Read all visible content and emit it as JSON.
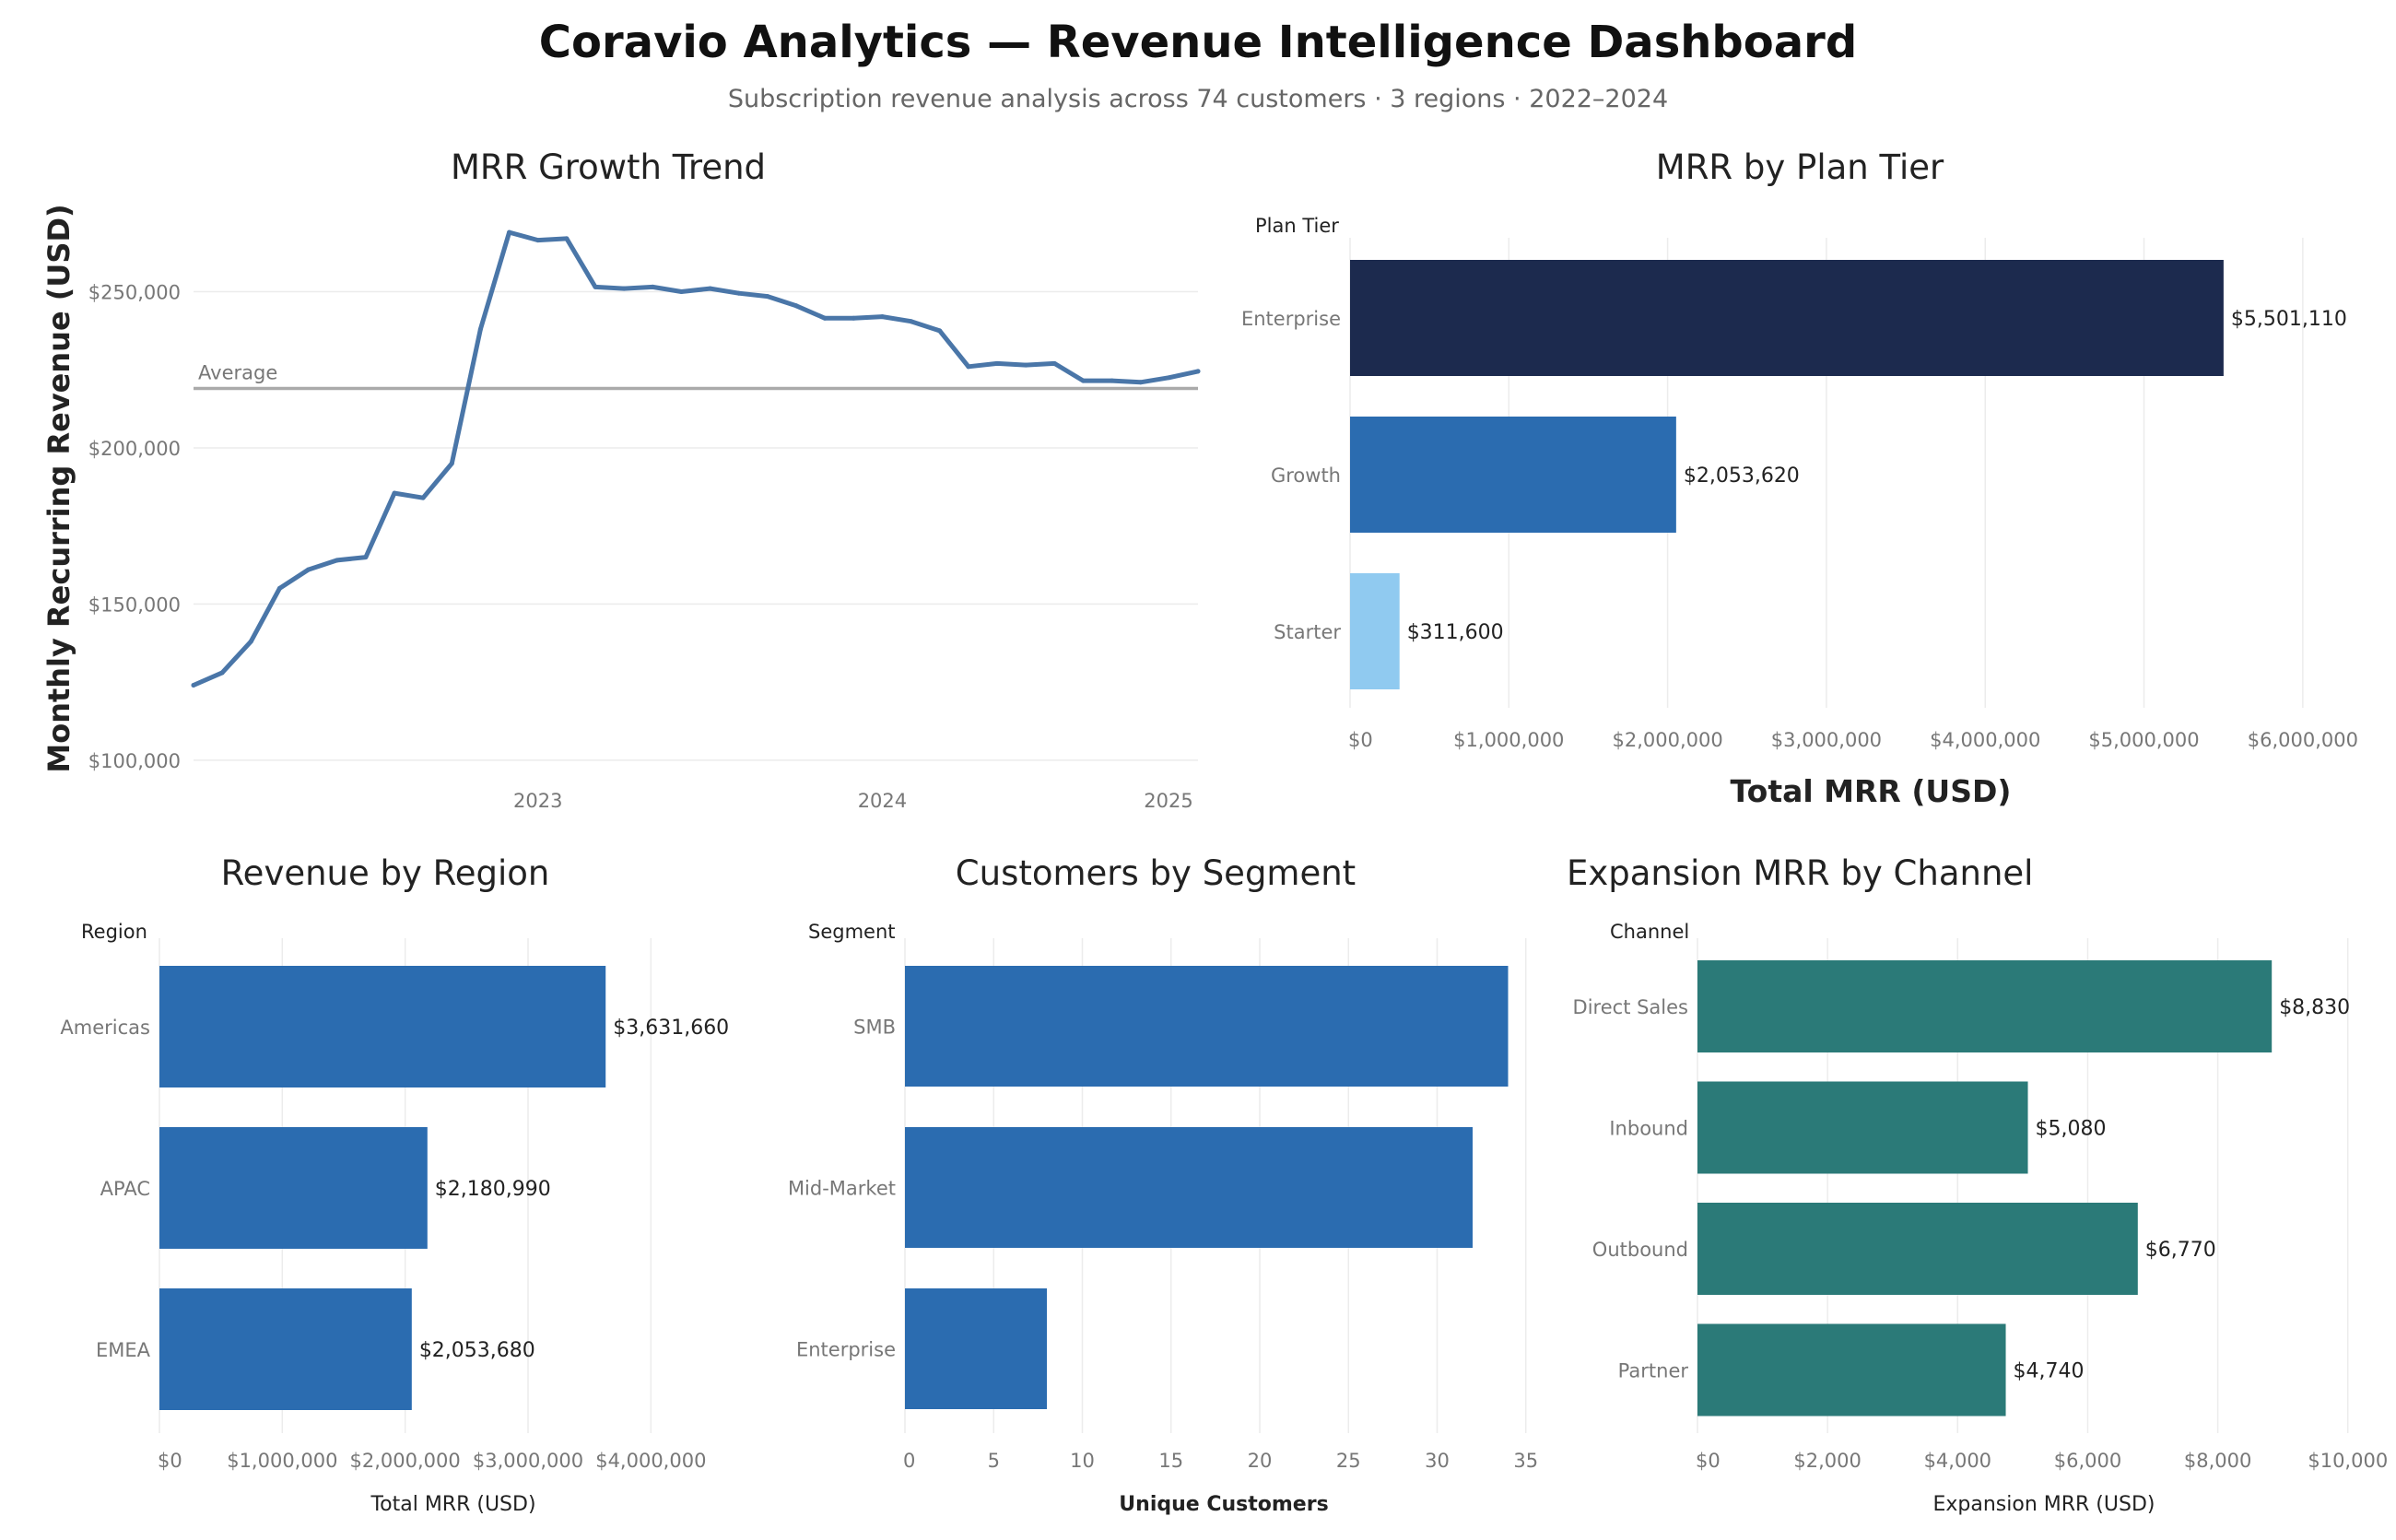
{
  "dashboard": {
    "title": "Coravio Analytics — Revenue Intelligence Dashboard",
    "subtitle": "Subscription revenue analysis across 74 customers · 3 regions · 2022–2024"
  },
  "colors": {
    "line": "#4a76a8",
    "navy": "#1c2a4e",
    "blue": "#2b6cb0",
    "light_blue": "#90caf0",
    "teal": "#2b7a78",
    "average_line": "#aaaaaa",
    "grid": "#ececec"
  },
  "chart_data": [
    {
      "type": "line",
      "title": "MRR Growth Trend",
      "ylabel": "Monthly Recurring Revenue (USD)",
      "xlabel": "",
      "x_ticks": [
        "2023",
        "2024",
        "2025"
      ],
      "y_ticks": [
        "$100,000",
        "$150,000",
        "$200,000",
        "$250,000"
      ],
      "ylim": [
        97000,
        277000
      ],
      "xlim": [
        "2022-01",
        "2024-12"
      ],
      "x": [
        "2022-01",
        "2022-02",
        "2022-03",
        "2022-04",
        "2022-05",
        "2022-06",
        "2022-07",
        "2022-08",
        "2022-09",
        "2022-10",
        "2022-11",
        "2022-12",
        "2023-01",
        "2023-02",
        "2023-03",
        "2023-04",
        "2023-05",
        "2023-06",
        "2023-07",
        "2023-08",
        "2023-09",
        "2023-10",
        "2023-11",
        "2023-12",
        "2024-01",
        "2024-02",
        "2024-03",
        "2024-04",
        "2024-05",
        "2024-06",
        "2024-07",
        "2024-08",
        "2024-09",
        "2024-10",
        "2024-11",
        "2024-12"
      ],
      "series": [
        {
          "values": [
            124000,
            128000,
            138000,
            155000,
            161000,
            164000,
            165000,
            185500,
            184000,
            195000,
            238000,
            269000,
            266500,
            267000,
            251500,
            251000,
            251500,
            250000,
            251000,
            249500,
            248500,
            245500,
            241500,
            241500,
            242000,
            240500,
            237500,
            226000,
            227000,
            226500,
            227000,
            221500,
            221500,
            221000,
            222500,
            224500
          ]
        }
      ],
      "average": 219000,
      "average_label": "Average",
      "grid": true
    },
    {
      "type": "bar",
      "orientation": "horizontal",
      "title": "MRR by Plan Tier",
      "axis_header": "Plan Tier",
      "categories": [
        "Enterprise",
        "Growth",
        "Starter"
      ],
      "values": [
        5501110,
        2053620,
        311600
      ],
      "value_labels": [
        "$5,501,110",
        "$2,053,620",
        "$311,600"
      ],
      "xlabel": "Total MRR (USD)",
      "xlim": [
        0,
        6500000
      ],
      "x_ticks": [
        0,
        1000000,
        2000000,
        3000000,
        4000000,
        5000000,
        6000000
      ],
      "x_tick_labels": [
        "$0",
        "$1,000,000",
        "$2,000,000",
        "$3,000,000",
        "$4,000,000",
        "$5,000,000",
        "$6,000,000"
      ],
      "colors": [
        "#1c2a4e",
        "#2b6cb0",
        "#90caf0"
      ],
      "grid": true
    },
    {
      "type": "bar",
      "orientation": "horizontal",
      "title": "Revenue by Region",
      "axis_header": "Region",
      "categories": [
        "Americas",
        "APAC",
        "EMEA"
      ],
      "values": [
        3631660,
        2180990,
        2053680
      ],
      "value_labels": [
        "$3,631,660",
        "$2,180,990",
        "$2,053,680"
      ],
      "xlabel": "Total MRR (USD)",
      "xlim": [
        0,
        4800000
      ],
      "x_ticks": [
        0,
        1000000,
        2000000,
        3000000,
        4000000
      ],
      "x_tick_labels": [
        "$0",
        "$1,000,000",
        "$2,000,000",
        "$3,000,000",
        "$4,000,000"
      ],
      "colors": [
        "#2b6cb0",
        "#2b6cb0",
        "#2b6cb0"
      ],
      "grid": true
    },
    {
      "type": "bar",
      "orientation": "horizontal",
      "title": "Customers by Segment",
      "axis_header": "Segment",
      "categories": [
        "SMB",
        "Mid-Market",
        "Enterprise"
      ],
      "values": [
        34,
        32,
        8
      ],
      "value_labels": [],
      "xlabel": "Unique Customers",
      "xlim": [
        0,
        36
      ],
      "x_ticks": [
        0,
        5,
        10,
        15,
        20,
        25,
        30,
        35
      ],
      "x_tick_labels": [
        "0",
        "5",
        "10",
        "15",
        "20",
        "25",
        "30",
        "35"
      ],
      "colors": [
        "#2b6cb0",
        "#2b6cb0",
        "#2b6cb0"
      ],
      "grid": true
    },
    {
      "type": "bar",
      "orientation": "horizontal",
      "title": "Expansion MRR by Channel",
      "axis_header": "Channel",
      "categories": [
        "Direct Sales",
        "Inbound",
        "Outbound",
        "Partner"
      ],
      "values": [
        8830,
        5080,
        6770,
        4740
      ],
      "value_labels": [
        "$8,830",
        "$5,080",
        "$6,770",
        "$4,740"
      ],
      "xlabel": "Expansion MRR (USD)",
      "xlim": [
        0,
        10400
      ],
      "x_ticks": [
        0,
        2000,
        4000,
        6000,
        8000,
        10000
      ],
      "x_tick_labels": [
        "$0",
        "$2,000",
        "$4,000",
        "$6,000",
        "$8,000",
        "$10,000"
      ],
      "colors": [
        "#2b7a78",
        "#2b7a78",
        "#2b7a78",
        "#2b7a78"
      ],
      "grid": true
    }
  ]
}
